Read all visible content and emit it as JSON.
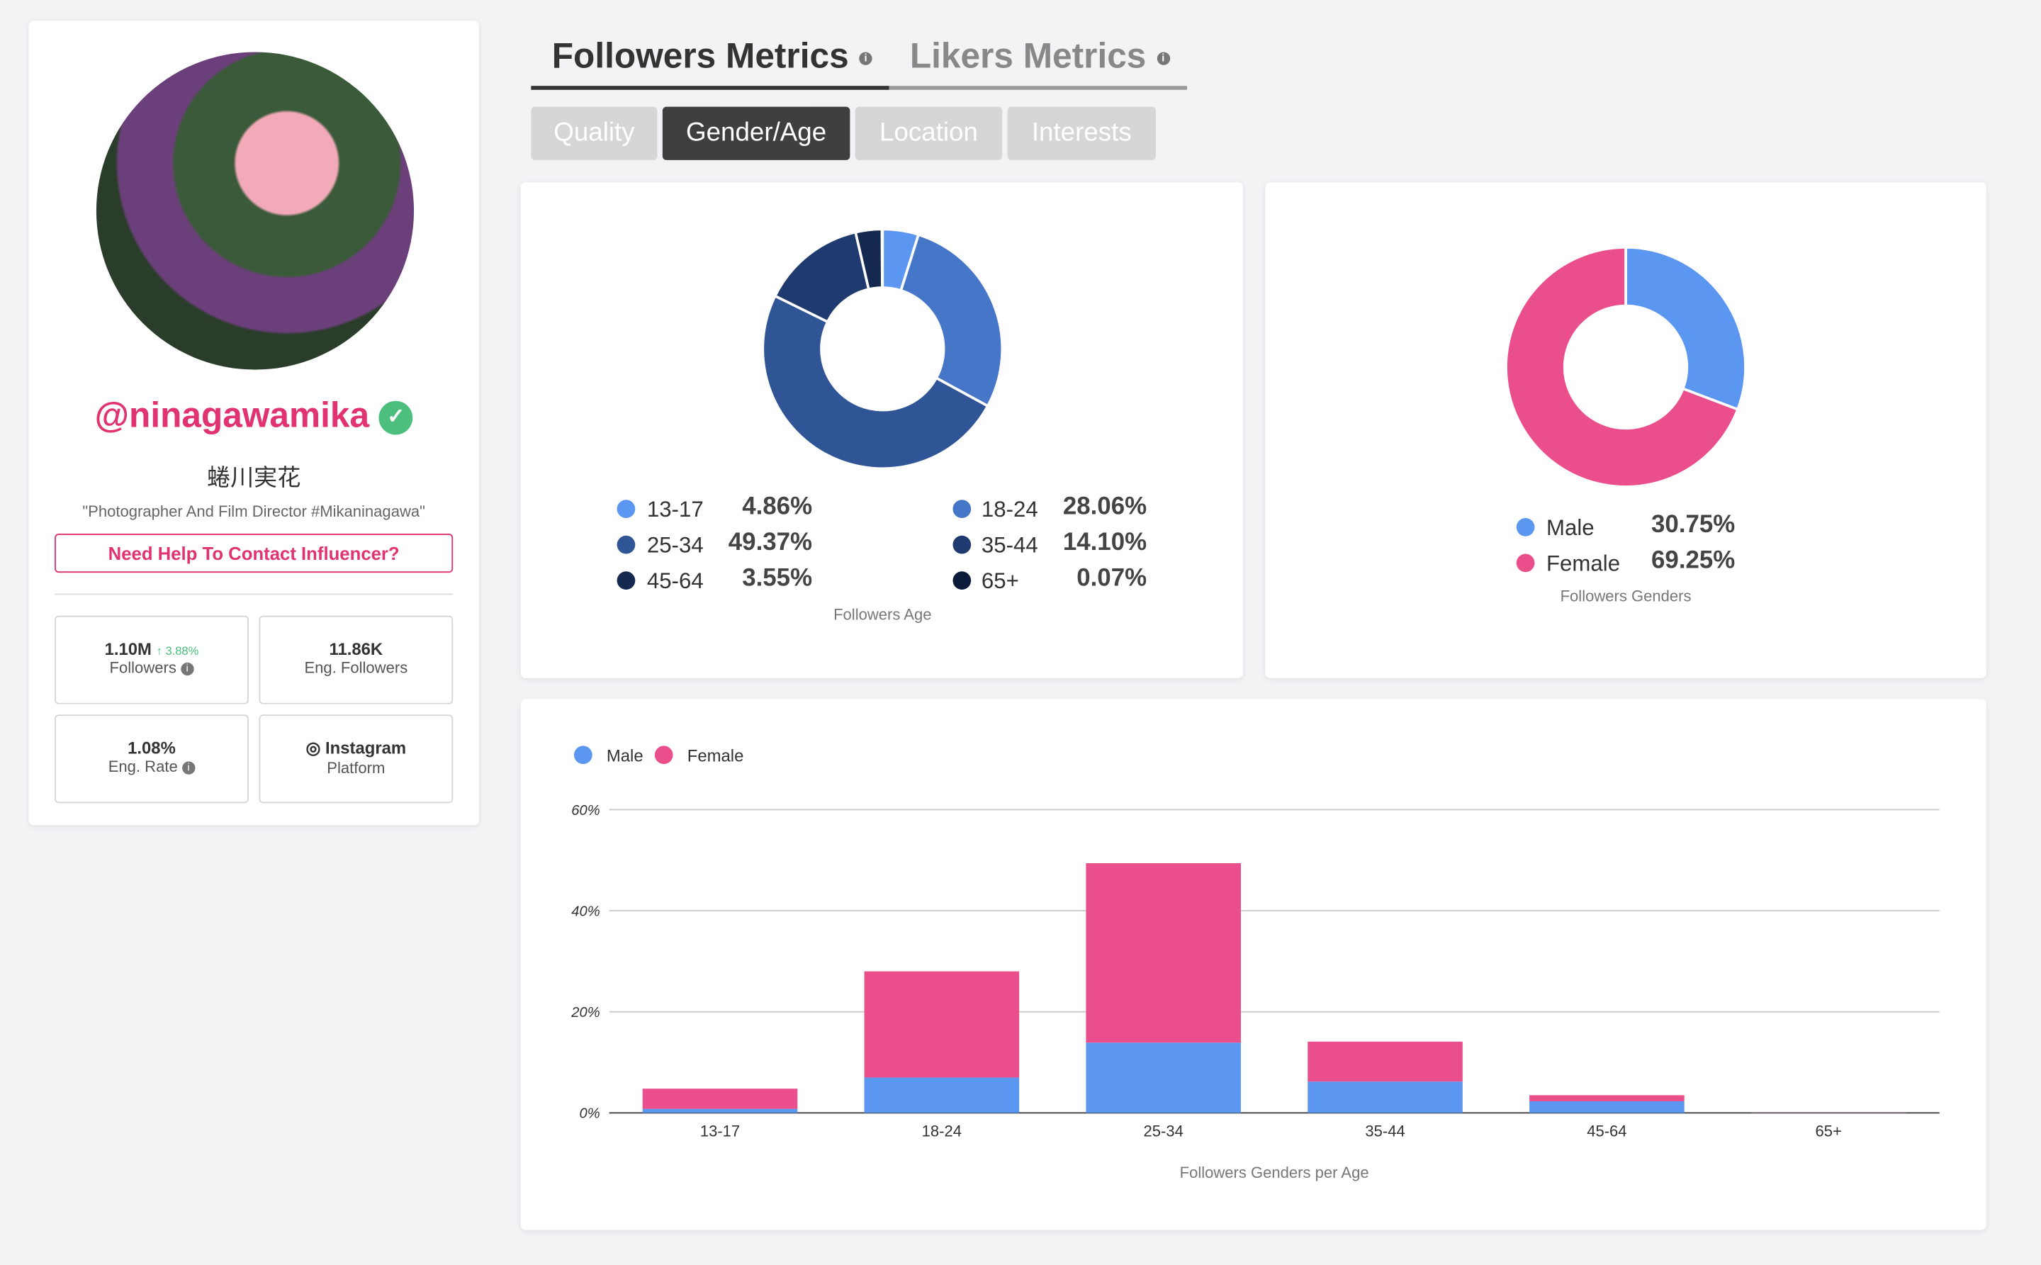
{
  "profile": {
    "handle": "@ninagawamika",
    "name": "蜷川実花",
    "bio": "\"Photographer And Film Director #Mikaninagawa\"",
    "contact_button": "Need Help To Contact Influencer?",
    "stats": [
      {
        "value": "1.10M",
        "change": "3.88%",
        "label": "Followers"
      },
      {
        "value": "11.86K",
        "label": "Eng. Followers"
      },
      {
        "value": "1.08%",
        "label": "Eng. Rate"
      },
      {
        "value": "Instagram",
        "label": "Platform"
      }
    ]
  },
  "tabs": [
    "Followers Metrics",
    "Likers Metrics"
  ],
  "active_tab": 0,
  "subtabs": [
    "Quality",
    "Gender/Age",
    "Location",
    "Interests"
  ],
  "active_subtab": 1,
  "chart_data": [
    {
      "type": "donut",
      "title": "Followers Age",
      "categories": [
        "13-17",
        "18-24",
        "25-34",
        "35-44",
        "45-64",
        "65+"
      ],
      "values": [
        4.86,
        28.06,
        49.37,
        14.1,
        3.55,
        0.07
      ],
      "value_labels": [
        "4.86%",
        "28.06%",
        "49.37%",
        "14.10%",
        "3.55%",
        "0.07%"
      ],
      "colors": [
        "#5b96f0",
        "#4676c8",
        "#2f5597",
        "#1e3a6e",
        "#142850",
        "#0b1a3a"
      ]
    },
    {
      "type": "donut",
      "title": "Followers Genders",
      "categories": [
        "Male",
        "Female"
      ],
      "values": [
        30.75,
        69.25
      ],
      "value_labels": [
        "30.75%",
        "69.25%"
      ],
      "colors": [
        "#5b96f0",
        "#ea4f8b"
      ]
    },
    {
      "type": "bar",
      "stacked": true,
      "title": "Followers Genders per Age",
      "categories": [
        "13-17",
        "18-24",
        "25-34",
        "35-44",
        "45-64",
        "65+"
      ],
      "series": [
        {
          "name": "Male",
          "color": "#5b96f0",
          "values": [
            0.8,
            7.0,
            13.9,
            6.2,
            2.3,
            0.03
          ]
        },
        {
          "name": "Female",
          "color": "#ea4f8b",
          "values": [
            4.0,
            21.0,
            35.5,
            7.9,
            1.2,
            0.04
          ]
        }
      ],
      "ylim": [
        0,
        60
      ],
      "yticks": [
        {
          "value": 0,
          "label": "0%"
        },
        {
          "value": 20,
          "label": "20%"
        },
        {
          "value": 40,
          "label": "40%"
        },
        {
          "value": 60,
          "label": "60%"
        }
      ],
      "grid": true
    }
  ]
}
